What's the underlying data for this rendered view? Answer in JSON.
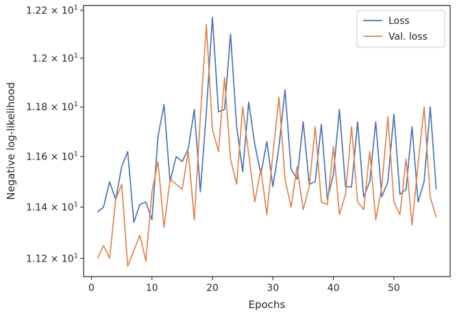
{
  "chart_data": {
    "type": "line",
    "xlabel": "Epochs",
    "ylabel": "Negative log-likelihood",
    "xlim": [
      -1.3,
      59.3
    ],
    "ylim": [
      11.13,
      12.22
    ],
    "yscale": "log",
    "xticks": [
      0,
      10,
      20,
      30,
      40,
      50
    ],
    "yticks": [
      {
        "value": 11.2,
        "base": "1.12",
        "exp": "1"
      },
      {
        "value": 11.4,
        "base": "1.14",
        "exp": "1"
      },
      {
        "value": 11.6,
        "base": "1.16",
        "exp": "1"
      },
      {
        "value": 11.8,
        "base": "1.18",
        "exp": "1"
      },
      {
        "value": 12.0,
        "base": "1.2",
        "exp": "1"
      },
      {
        "value": 12.2,
        "base": "1.22",
        "exp": "1"
      }
    ],
    "legend_position": "top-right",
    "grid": false,
    "x": [
      1,
      2,
      3,
      4,
      5,
      6,
      7,
      8,
      9,
      10,
      11,
      12,
      13,
      14,
      15,
      16,
      17,
      18,
      19,
      20,
      21,
      22,
      23,
      24,
      25,
      26,
      27,
      28,
      29,
      30,
      31,
      32,
      33,
      34,
      35,
      36,
      37,
      38,
      39,
      40,
      41,
      42,
      43,
      44,
      45,
      46,
      47,
      48,
      49,
      50,
      51,
      52,
      53,
      54,
      55,
      56,
      57
    ],
    "series": [
      {
        "name": "Loss",
        "color": "#4c72b0",
        "values": [
          11.38,
          11.4,
          11.5,
          11.43,
          11.56,
          11.62,
          11.34,
          11.41,
          11.42,
          11.35,
          11.68,
          11.81,
          11.5,
          11.6,
          11.58,
          11.63,
          11.79,
          11.46,
          11.78,
          12.17,
          11.78,
          11.79,
          12.1,
          11.72,
          11.54,
          11.82,
          11.65,
          11.53,
          11.66,
          11.48,
          11.64,
          11.87,
          11.55,
          11.51,
          11.74,
          11.49,
          11.5,
          11.73,
          11.43,
          11.53,
          11.79,
          11.48,
          11.48,
          11.74,
          11.44,
          11.5,
          11.74,
          11.44,
          11.5,
          11.77,
          11.45,
          11.47,
          11.72,
          11.42,
          11.5,
          11.8,
          11.47
        ]
      },
      {
        "name": "Val. loss",
        "color": "#dd8452",
        "values": [
          11.2,
          11.25,
          11.2,
          11.43,
          11.49,
          11.17,
          11.23,
          11.29,
          11.19,
          11.46,
          11.58,
          11.32,
          11.51,
          11.49,
          11.47,
          11.62,
          11.35,
          11.76,
          12.14,
          11.71,
          11.62,
          11.92,
          11.59,
          11.49,
          11.8,
          11.61,
          11.42,
          11.55,
          11.37,
          11.61,
          11.84,
          11.51,
          11.4,
          11.56,
          11.39,
          11.48,
          11.72,
          11.42,
          11.41,
          11.64,
          11.37,
          11.45,
          11.72,
          11.42,
          11.39,
          11.62,
          11.35,
          11.48,
          11.76,
          11.42,
          11.37,
          11.59,
          11.33,
          11.57,
          11.8,
          11.44,
          11.36
        ]
      }
    ]
  }
}
